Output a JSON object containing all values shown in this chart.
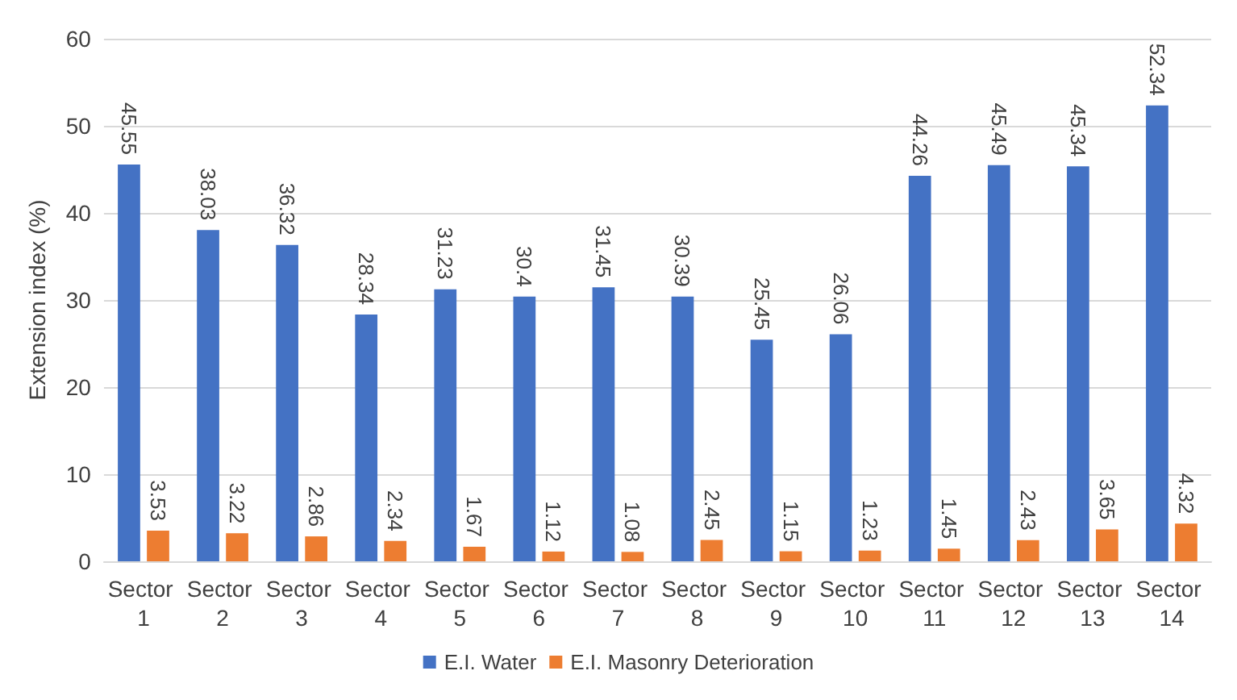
{
  "chart_data": {
    "type": "bar",
    "categories": [
      "Sector 1",
      "Sector 2",
      "Sector 3",
      "Sector 4",
      "Sector 5",
      "Sector 6",
      "Sector 7",
      "Sector 8",
      "Sector 9",
      "Sector 10",
      "Sector 11",
      "Sector 12",
      "Sector 13",
      "Sector 14"
    ],
    "series": [
      {
        "name": "E.I. Water",
        "color": "#4472c4",
        "values": [
          45.55,
          38.03,
          36.32,
          28.34,
          31.23,
          30.4,
          31.45,
          30.39,
          25.45,
          26.06,
          44.26,
          45.49,
          45.34,
          52.34
        ]
      },
      {
        "name": "E.I. Masonry Deterioration",
        "color": "#ed7d31",
        "values": [
          3.53,
          3.22,
          2.86,
          2.34,
          1.67,
          1.12,
          1.08,
          2.45,
          1.15,
          1.23,
          1.45,
          2.43,
          3.65,
          4.32
        ]
      }
    ],
    "ylabel": "Extension index (%)",
    "ylim": [
      0,
      60
    ],
    "yticks": [
      0,
      10,
      20,
      30,
      40,
      50,
      60
    ],
    "grid": "y",
    "legend": "bottom",
    "data_labels": true
  }
}
